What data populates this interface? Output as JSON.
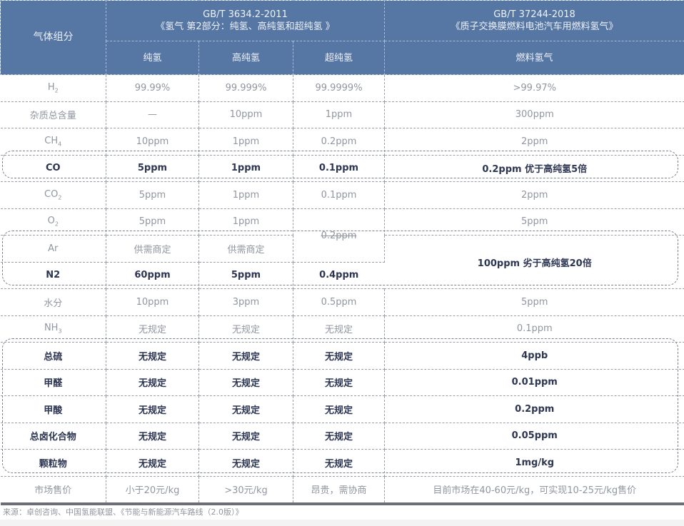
{
  "header": {
    "corner": "气体组分",
    "std1": {
      "code": "GB/T 3634.2-2011",
      "title": "《氢气 第2部分：纯氢、高纯氢和超纯氢 》"
    },
    "std2": {
      "code": "GB/T 37244-2018",
      "title": "《质子交换膜燃料电池汽车用燃料氢气》"
    },
    "subcols": [
      "纯氢",
      "高纯氢",
      "超纯氢",
      "燃料氢气"
    ]
  },
  "rows": [
    {
      "name": "H",
      "sub": "2",
      "cells": [
        "99.99%",
        "99.999%",
        "99.9999%",
        ">99.97%"
      ]
    },
    {
      "name": "杂质总含量",
      "sub": "",
      "cells": [
        "—",
        "10ppm",
        "1ppm",
        "300ppm"
      ]
    },
    {
      "name": "CH",
      "sub": "4",
      "cells": [
        "10ppm",
        "1ppm",
        "0.2ppm",
        "2ppm"
      ]
    },
    {
      "name": "CO",
      "sub": "",
      "cells": [
        "5ppm",
        "1ppm",
        "0.1ppm",
        "0.2ppm 优于高纯氢5倍"
      ]
    },
    {
      "name": "CO",
      "sub": "2",
      "cells": [
        "5ppm",
        "1ppm",
        "0.1ppm",
        "2ppm"
      ]
    },
    {
      "name": "O",
      "sub": "2",
      "cells": [
        "5ppm",
        "1ppm",
        "0.2ppm",
        "5ppm"
      ]
    },
    {
      "name": "Ar",
      "sub": "",
      "cells": [
        "供需商定",
        "供需商定"
      ]
    },
    {
      "name": "N2",
      "sub": "",
      "cells": [
        "60ppm",
        "5ppm",
        "0.4ppm",
        "100ppm 劣于高纯氢20倍"
      ]
    },
    {
      "name": "水分",
      "sub": "",
      "cells": [
        "10ppm",
        "3ppm",
        "0.5ppm",
        "5ppm"
      ]
    },
    {
      "name": "NH",
      "sub": "3",
      "cells": [
        "无规定",
        "无规定",
        "无规定",
        "0.1ppm"
      ]
    },
    {
      "name": "总硫",
      "sub": "",
      "cells": [
        "无规定",
        "无规定",
        "无规定",
        "4ppb"
      ]
    },
    {
      "name": "甲醛",
      "sub": "",
      "cells": [
        "无规定",
        "无规定",
        "无规定",
        "0.01ppm"
      ]
    },
    {
      "name": "甲酸",
      "sub": "",
      "cells": [
        "无规定",
        "无规定",
        "无规定",
        "0.2ppm"
      ]
    },
    {
      "name": "总卤化合物",
      "sub": "",
      "cells": [
        "无规定",
        "无规定",
        "无规定",
        "0.05ppm"
      ]
    },
    {
      "name": "颗粒物",
      "sub": "",
      "cells": [
        "无规定",
        "无规定",
        "无规定",
        "1mg/kg"
      ]
    },
    {
      "name": "市场售价",
      "sub": "",
      "cells": [
        "小于20元/kg",
        ">30元/kg",
        "昂贵，需协商",
        "目前市场在40-60元/kg，可实现10-25元/kg售价"
      ]
    }
  ],
  "footer": "来源：卓创咨询、中国氢能联盟、《节能与新能源汽车路线（2.0版）》"
}
